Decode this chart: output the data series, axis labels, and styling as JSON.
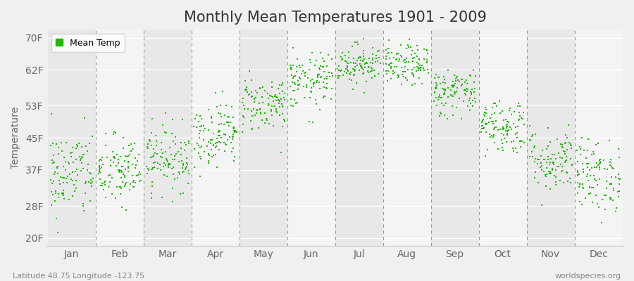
{
  "title": "Monthly Mean Temperatures 1901 - 2009",
  "ylabel": "Temperature",
  "xlabel_left": "Latitude 48.75 Longitude -123.75",
  "xlabel_right": "worldspecies.org",
  "background_color": "#f0f0f0",
  "plot_bg_color": "#f0f0f0",
  "band_color_dark": "#e8e8e8",
  "band_color_light": "#f4f4f4",
  "dot_color": "#22bb00",
  "dot_size": 3,
  "legend_label": "Mean Temp",
  "ytick_labels": [
    "20F",
    "28F",
    "37F",
    "45F",
    "53F",
    "62F",
    "70F"
  ],
  "ytick_values": [
    20,
    28,
    37,
    45,
    53,
    62,
    70
  ],
  "ylim": [
    18,
    72
  ],
  "months": [
    "Jan",
    "Feb",
    "Mar",
    "Apr",
    "May",
    "Jun",
    "Jul",
    "Aug",
    "Sep",
    "Oct",
    "Nov",
    "Dec"
  ],
  "monthly_mean_F": [
    36.0,
    36.5,
    40.0,
    46.0,
    53.5,
    59.0,
    63.5,
    63.0,
    56.5,
    48.0,
    39.5,
    35.5
  ],
  "monthly_std_F": [
    5.5,
    4.5,
    4.0,
    4.0,
    3.5,
    3.5,
    2.5,
    2.5,
    3.0,
    3.5,
    4.0,
    4.5
  ],
  "n_years": 109,
  "title_fontsize": 15,
  "axis_label_fontsize": 10,
  "tick_fontsize": 10,
  "legend_fontsize": 9
}
